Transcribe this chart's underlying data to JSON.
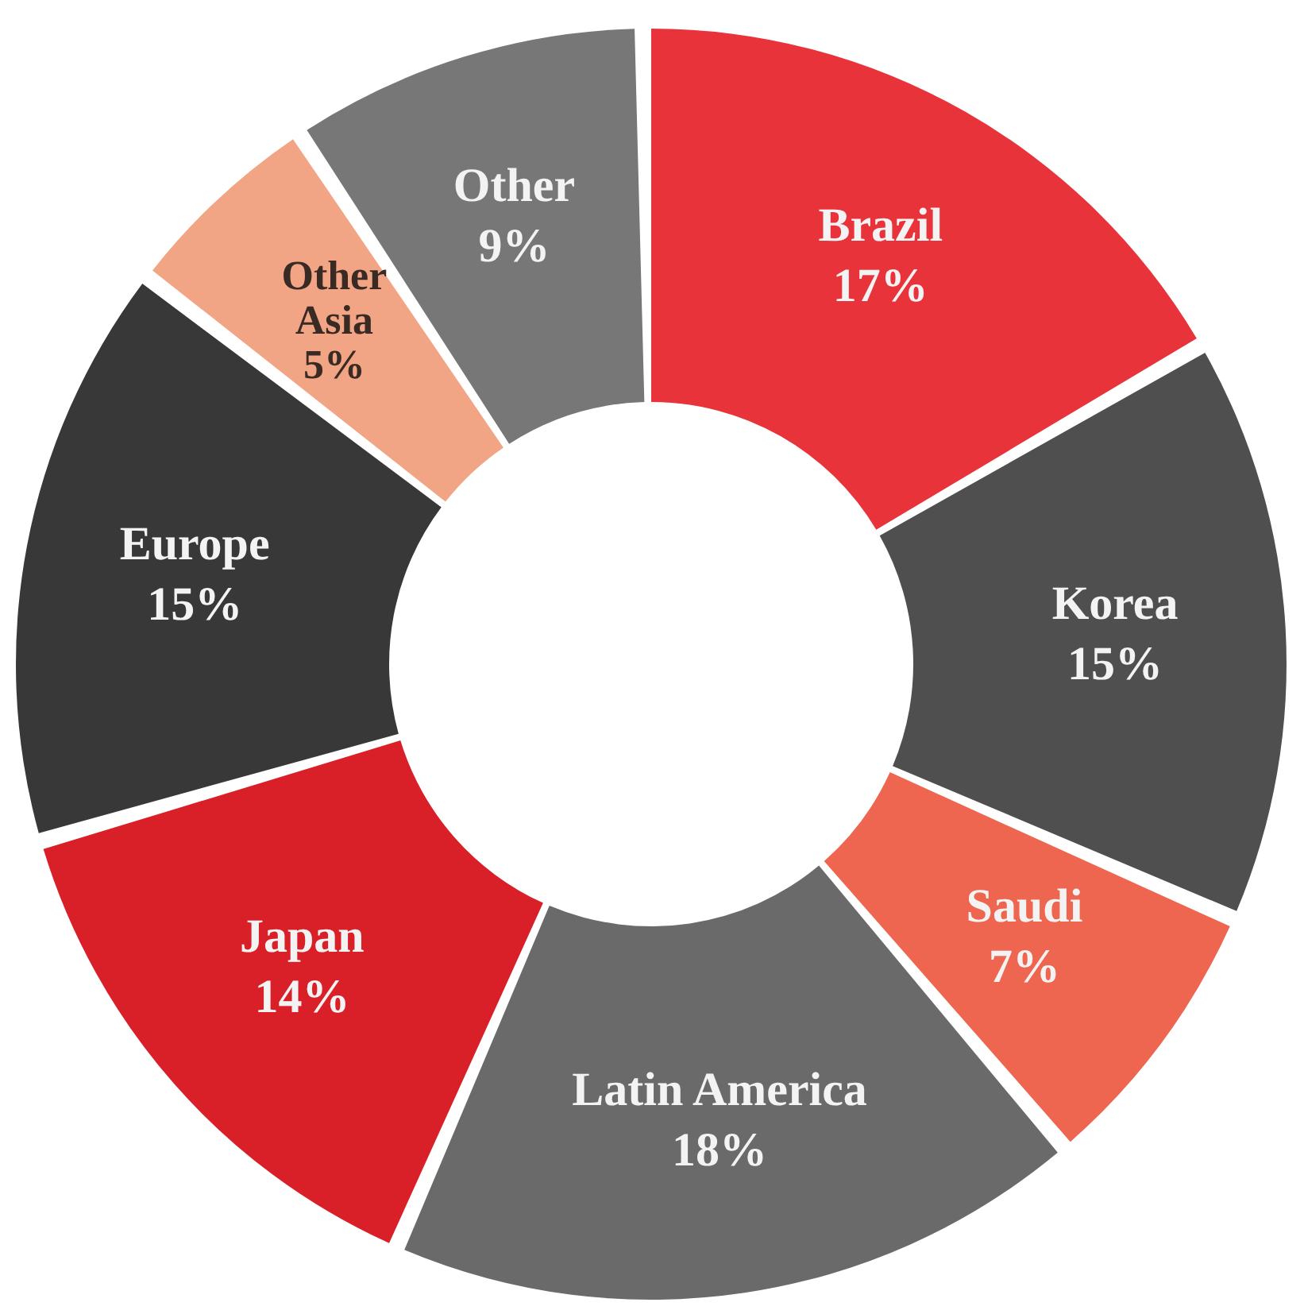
{
  "chart_data": {
    "type": "donut",
    "categories": [
      "Brazil",
      "Korea",
      "Saudi",
      "Latin America",
      "Japan",
      "Europe",
      "Other Asia",
      "Other"
    ],
    "values": [
      17,
      15,
      7,
      18,
      14,
      15,
      5,
      9
    ],
    "value_labels": [
      "17%",
      "15%",
      "7%",
      "18%",
      "14%",
      "15%",
      "5%",
      "9%"
    ],
    "colors": [
      "#e8333a",
      "#4f4f4f",
      "#ee6650",
      "#6a6a6a",
      "#d92029",
      "#383838",
      "#f2a585",
      "#777777"
    ],
    "legend": false
  }
}
